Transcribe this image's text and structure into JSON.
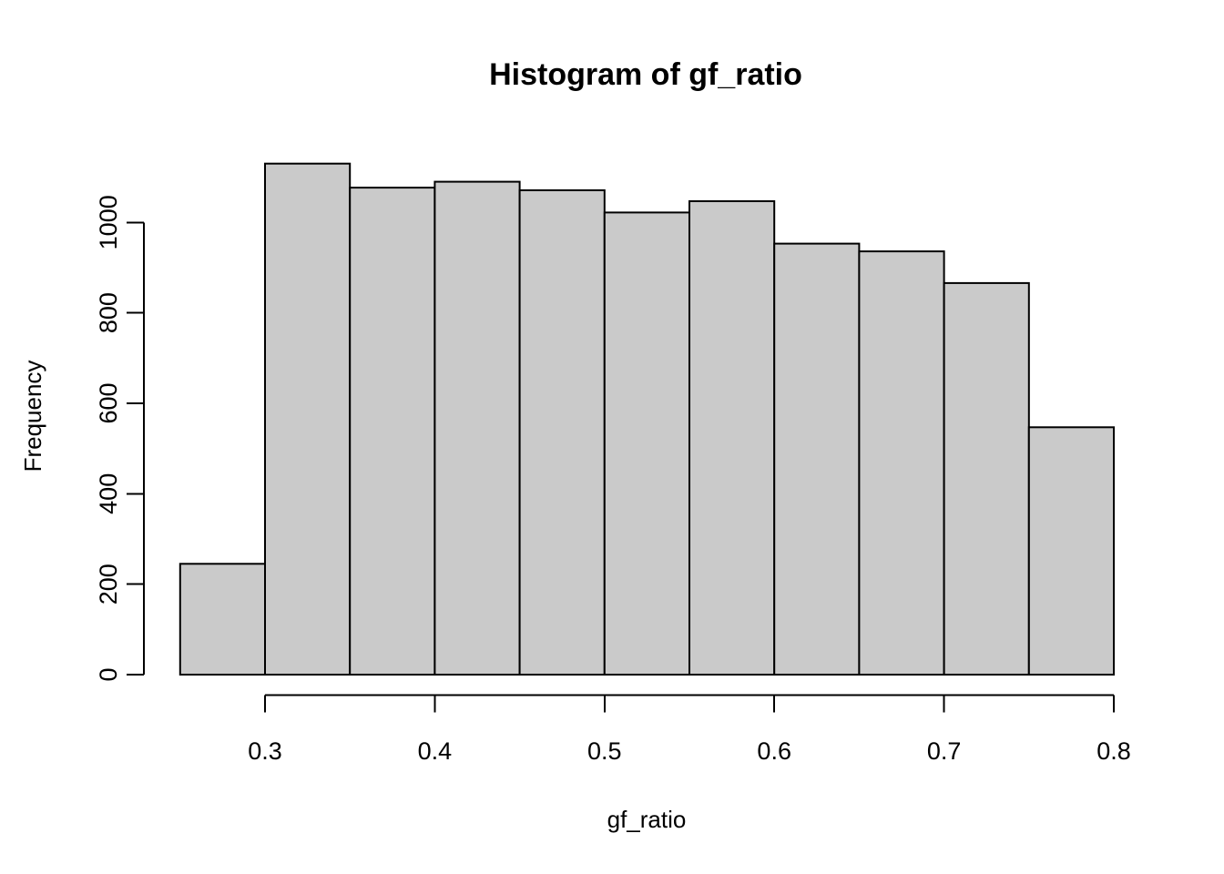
{
  "chart_data": {
    "type": "bar",
    "subtype": "histogram",
    "title": "Histogram of gf_ratio",
    "xlabel": "gf_ratio",
    "ylabel": "Frequency",
    "breaks": [
      0.25,
      0.3,
      0.35,
      0.4,
      0.45,
      0.5,
      0.55,
      0.6,
      0.65,
      0.7,
      0.75,
      0.8
    ],
    "counts": [
      245,
      1130,
      1077,
      1090,
      1071,
      1022,
      1047,
      953,
      936,
      866,
      547
    ],
    "x_ticks": [
      0.3,
      0.4,
      0.5,
      0.6,
      0.7,
      0.8
    ],
    "x_tick_labels": [
      "0.3",
      "0.4",
      "0.5",
      "0.6",
      "0.7",
      "0.8"
    ],
    "y_ticks": [
      0,
      200,
      400,
      600,
      800,
      1000
    ],
    "y_tick_labels": [
      "0",
      "200",
      "400",
      "600",
      "800",
      "1000"
    ],
    "xlim": [
      0.25,
      0.8
    ],
    "ylim": [
      0,
      1150
    ],
    "grid": false,
    "legend": null,
    "bar_fill": "#CACACA",
    "bar_stroke": "#000000",
    "axis_color": "#000000",
    "background": "#FFFFFF"
  }
}
